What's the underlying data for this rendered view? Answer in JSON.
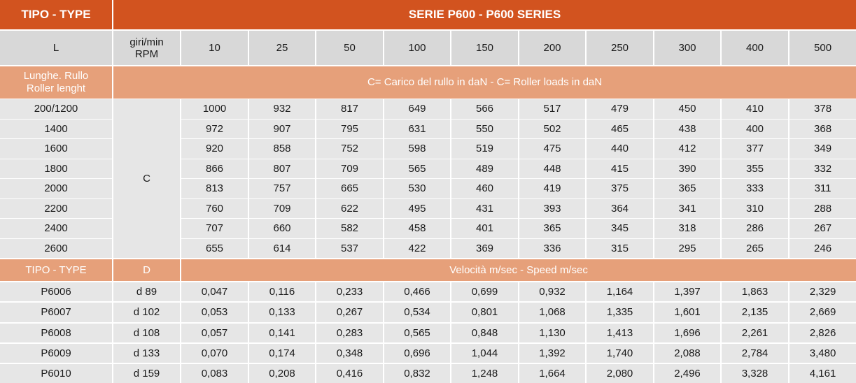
{
  "header": {
    "type_label": "TIPO - TYPE",
    "series_label": "SERIE P600 - P600 SERIES"
  },
  "subheader": {
    "l_label": "L",
    "rpm_label_1": "giri/min",
    "rpm_label_2": "RPM",
    "rpm_values": [
      "10",
      "25",
      "50",
      "100",
      "150",
      "200",
      "250",
      "300",
      "400",
      "500"
    ]
  },
  "load_section": {
    "length_label_1": "Lunghe. Rullo",
    "length_label_2": "Roller lenght",
    "title": "C= Carico del rullo in daN - C= Roller loads in daN",
    "c_label": "C",
    "rows": [
      {
        "length": "200/1200",
        "values": [
          "1000",
          "932",
          "817",
          "649",
          "566",
          "517",
          "479",
          "450",
          "410",
          "378"
        ]
      },
      {
        "length": "1400",
        "values": [
          "972",
          "907",
          "795",
          "631",
          "550",
          "502",
          "465",
          "438",
          "400",
          "368"
        ]
      },
      {
        "length": "1600",
        "values": [
          "920",
          "858",
          "752",
          "598",
          "519",
          "475",
          "440",
          "412",
          "377",
          "349"
        ]
      },
      {
        "length": "1800",
        "values": [
          "866",
          "807",
          "709",
          "565",
          "489",
          "448",
          "415",
          "390",
          "355",
          "332"
        ]
      },
      {
        "length": "2000",
        "values": [
          "813",
          "757",
          "665",
          "530",
          "460",
          "419",
          "375",
          "365",
          "333",
          "311"
        ]
      },
      {
        "length": "2200",
        "values": [
          "760",
          "709",
          "622",
          "495",
          "431",
          "393",
          "364",
          "341",
          "310",
          "288"
        ]
      },
      {
        "length": "2400",
        "values": [
          "707",
          "660",
          "582",
          "458",
          "401",
          "365",
          "345",
          "318",
          "286",
          "267"
        ]
      },
      {
        "length": "2600",
        "values": [
          "655",
          "614",
          "537",
          "422",
          "369",
          "336",
          "315",
          "295",
          "265",
          "246"
        ]
      }
    ]
  },
  "speed_section": {
    "type_label": "TIPO - TYPE",
    "d_label": "D",
    "title": "Velocità m/sec - Speed m/sec",
    "rows": [
      {
        "type": "P6006",
        "d": "d 89",
        "values": [
          "0,047",
          "0,116",
          "0,233",
          "0,466",
          "0,699",
          "0,932",
          "1,164",
          "1,397",
          "1,863",
          "2,329"
        ]
      },
      {
        "type": "P6007",
        "d": "d 102",
        "values": [
          "0,053",
          "0,133",
          "0,267",
          "0,534",
          "0,801",
          "1,068",
          "1,335",
          "1,601",
          "2,135",
          "2,669"
        ]
      },
      {
        "type": "P6008",
        "d": "d 108",
        "values": [
          "0,057",
          "0,141",
          "0,283",
          "0,565",
          "0,848",
          "1,130",
          "1,413",
          "1,696",
          "2,261",
          "2,826"
        ]
      },
      {
        "type": "P6009",
        "d": "d 133",
        "values": [
          "0,070",
          "0,174",
          "0,348",
          "0,696",
          "1,044",
          "1,392",
          "1,740",
          "2,088",
          "2,784",
          "3,480"
        ]
      },
      {
        "type": "P6010",
        "d": "d 159",
        "values": [
          "0,083",
          "0,208",
          "0,416",
          "0,832",
          "1,248",
          "1,664",
          "2,080",
          "2,496",
          "3,328",
          "4,161"
        ]
      }
    ]
  }
}
